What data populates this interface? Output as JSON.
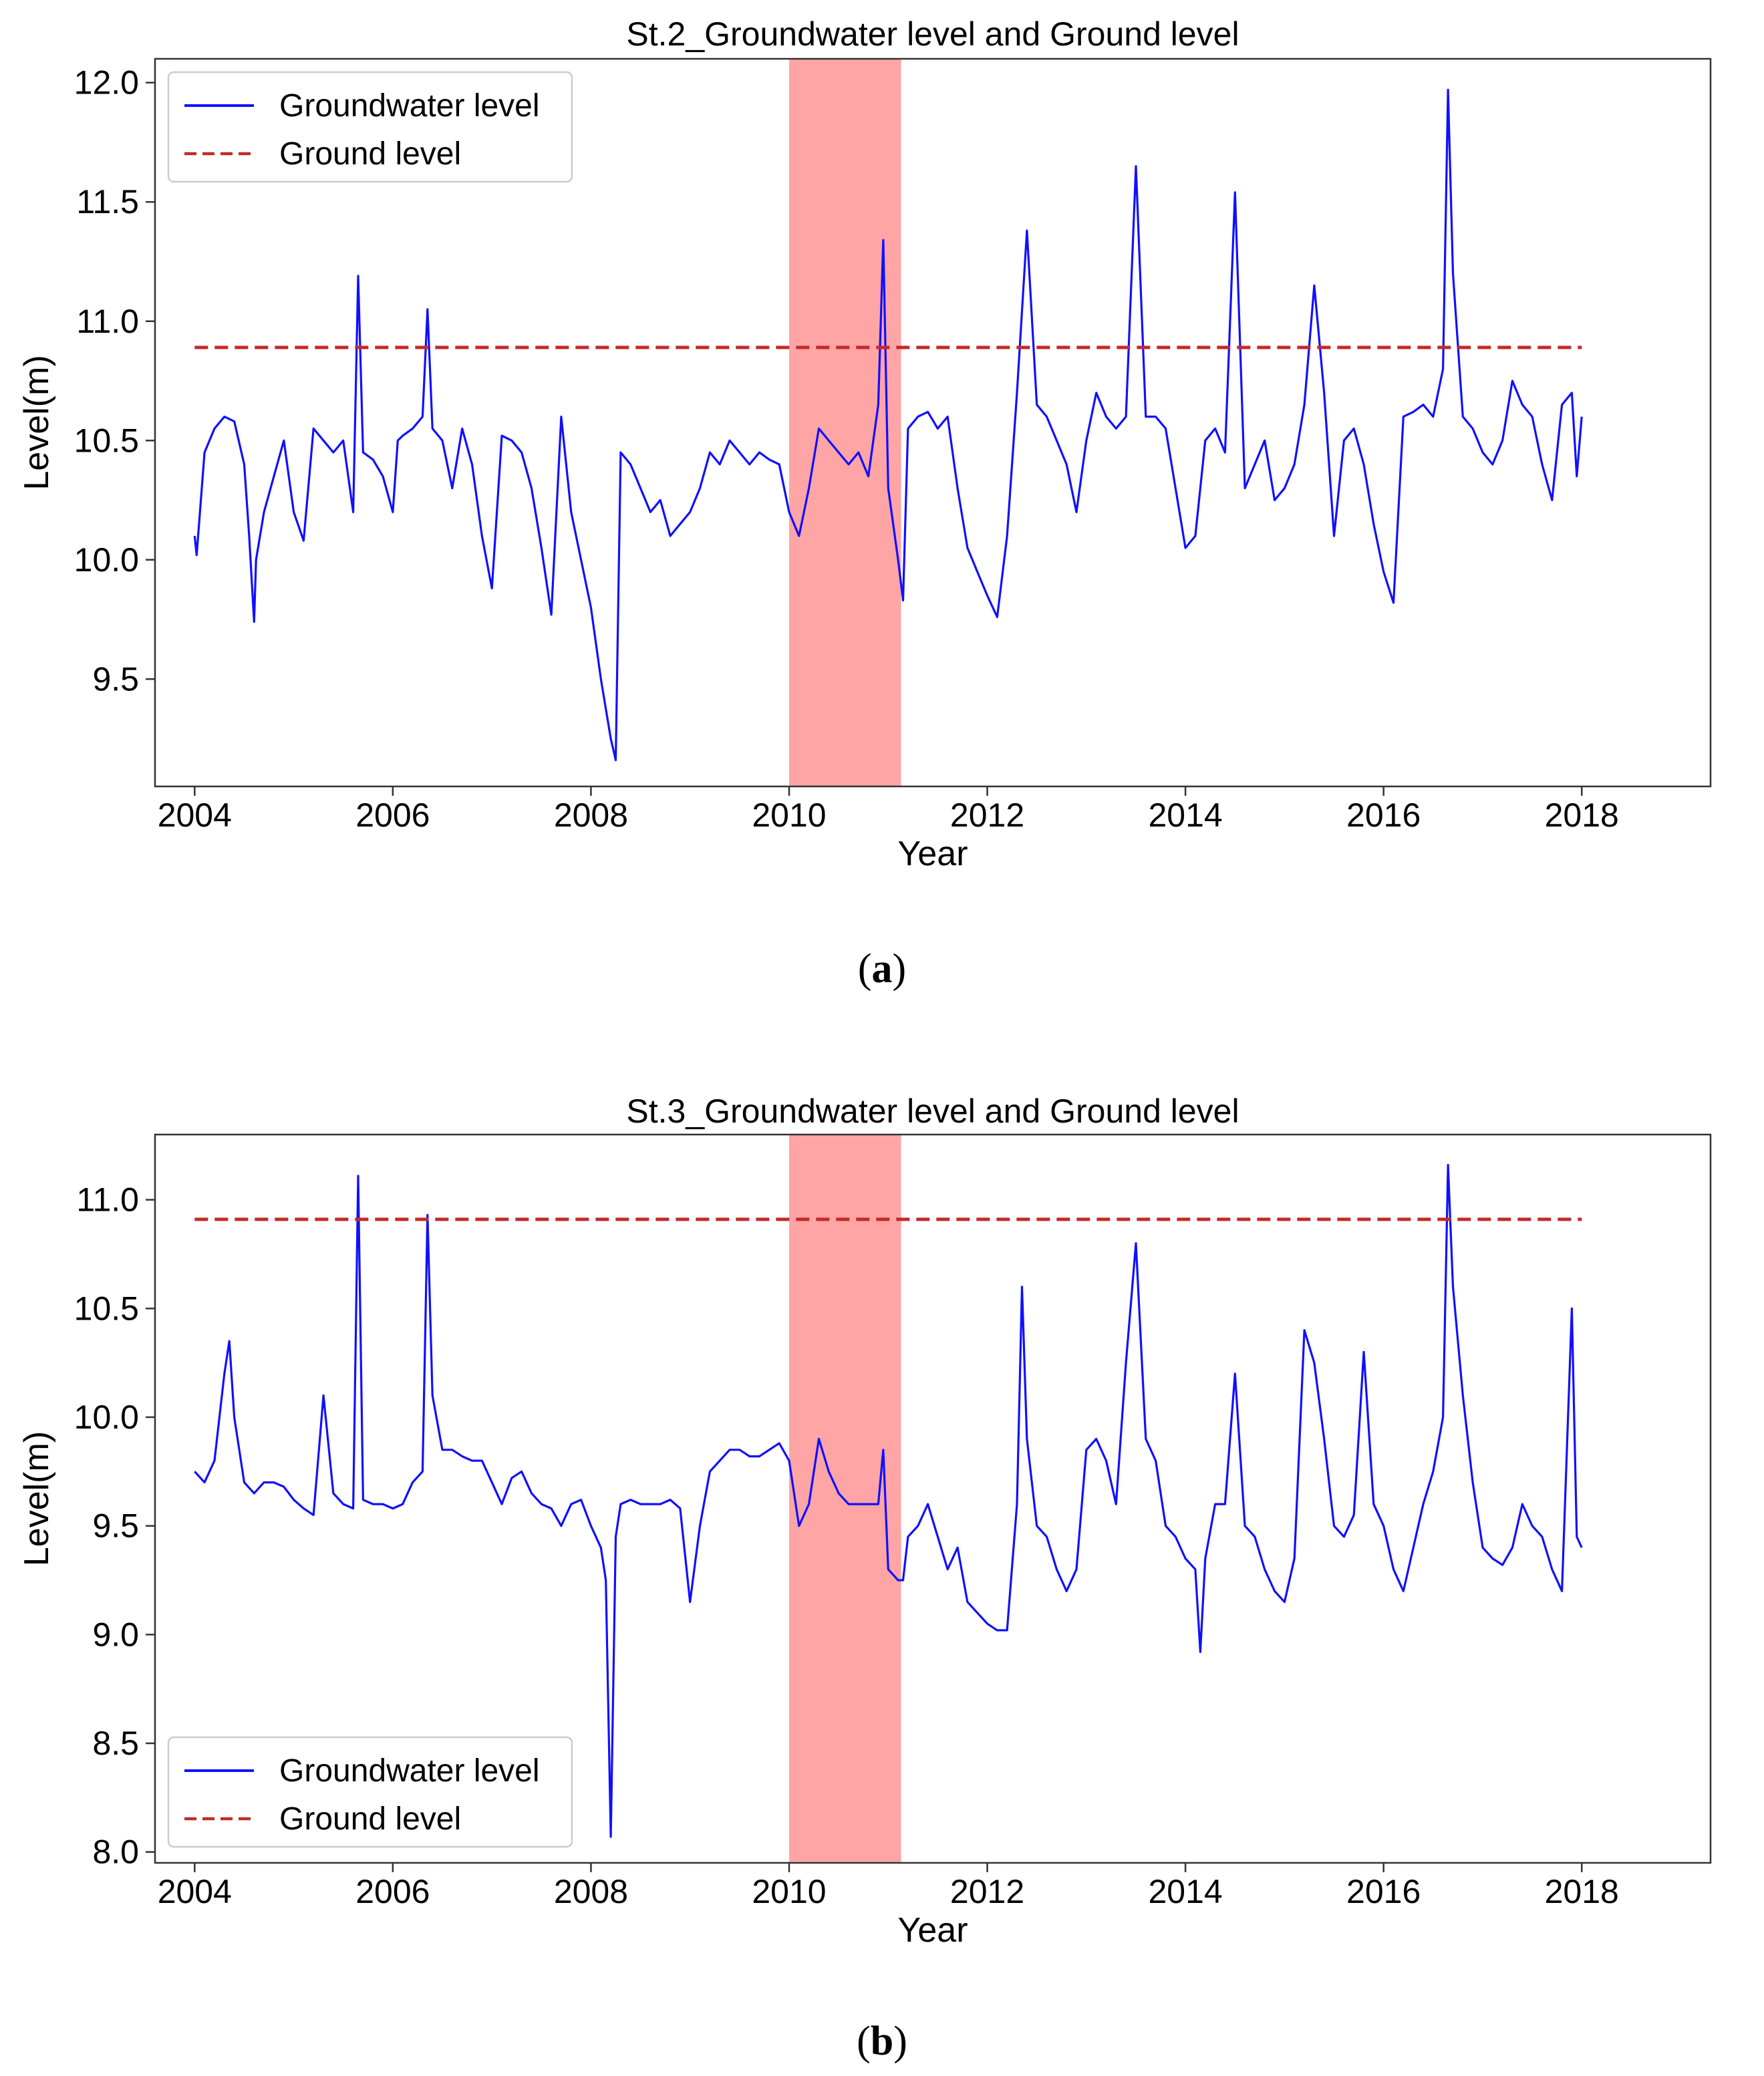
{
  "chart_data": [
    {
      "type": "line",
      "title": "St.2_Groundwater level and Ground level",
      "xlabel": "Year",
      "ylabel": "Level(m)",
      "xlim": [
        2003.6,
        2019.3
      ],
      "ylim": [
        9.05,
        12.1
      ],
      "xticks": [
        2004,
        2006,
        2008,
        2010,
        2012,
        2014,
        2016,
        2018
      ],
      "xtick_labels": [
        "2004",
        "2006",
        "2008",
        "2010",
        "2012",
        "2014",
        "2016",
        "2018"
      ],
      "yticks": [
        9.5,
        10.0,
        10.5,
        11.0,
        11.5,
        12.0
      ],
      "ytick_labels": [
        "9.5",
        "10.0",
        "10.5",
        "11.0",
        "11.5",
        "12.0"
      ],
      "legend_position": "top-left",
      "legend": [
        "Groundwater level",
        "Ground level"
      ],
      "shaded_region": {
        "x_start": 2010.0,
        "x_end": 2011.13,
        "color": "#ff8c8c"
      },
      "series": [
        {
          "name": "Groundwater level",
          "color": "#1010ff",
          "style": "solid",
          "x": [
            2004.0,
            2004.02,
            2004.1,
            2004.2,
            2004.3,
            2004.4,
            2004.5,
            2004.55,
            2004.6,
            2004.62,
            2004.7,
            2004.8,
            2004.9,
            2005.0,
            2005.1,
            2005.2,
            2005.3,
            2005.4,
            2005.5,
            2005.6,
            2005.65,
            2005.7,
            2005.8,
            2005.9,
            2006.0,
            2006.05,
            2006.1,
            2006.2,
            2006.3,
            2006.35,
            2006.4,
            2006.5,
            2006.6,
            2006.7,
            2006.8,
            2006.9,
            2007.0,
            2007.1,
            2007.2,
            2007.3,
            2007.4,
            2007.5,
            2007.6,
            2007.7,
            2007.8,
            2007.9,
            2008.0,
            2008.1,
            2008.2,
            2008.25,
            2008.3,
            2008.4,
            2008.5,
            2008.6,
            2008.7,
            2008.8,
            2008.9,
            2009.0,
            2009.1,
            2009.2,
            2009.3,
            2009.4,
            2009.5,
            2009.6,
            2009.7,
            2009.8,
            2009.9,
            2010.0,
            2010.1,
            2010.2,
            2010.3,
            2010.4,
            2010.5,
            2010.6,
            2010.7,
            2010.8,
            2010.9,
            2010.95,
            2011.0,
            2011.1,
            2011.15,
            2011.2,
            2011.3,
            2011.4,
            2011.5,
            2011.6,
            2011.7,
            2011.8,
            2011.9,
            2012.0,
            2012.1,
            2012.2,
            2012.3,
            2012.4,
            2012.5,
            2012.6,
            2012.7,
            2012.8,
            2012.9,
            2013.0,
            2013.1,
            2013.2,
            2013.3,
            2013.4,
            2013.5,
            2013.6,
            2013.7,
            2013.8,
            2013.9,
            2014.0,
            2014.1,
            2014.2,
            2014.3,
            2014.4,
            2014.5,
            2014.6,
            2014.7,
            2014.8,
            2014.9,
            2015.0,
            2015.1,
            2015.2,
            2015.3,
            2015.4,
            2015.5,
            2015.6,
            2015.7,
            2015.8,
            2015.9,
            2016.0,
            2016.1,
            2016.2,
            2016.3,
            2016.4,
            2016.5,
            2016.6,
            2016.65,
            2016.7,
            2016.8,
            2016.9,
            2017.0,
            2017.1,
            2017.2,
            2017.3,
            2017.4,
            2017.5,
            2017.6,
            2017.7,
            2017.8,
            2017.9,
            2017.95,
            2018.0
          ],
          "values": [
            10.1,
            10.02,
            10.45,
            10.55,
            10.6,
            10.58,
            10.4,
            10.1,
            9.74,
            10.0,
            10.2,
            10.35,
            10.5,
            10.2,
            10.08,
            10.55,
            10.5,
            10.45,
            10.5,
            10.2,
            11.19,
            10.45,
            10.42,
            10.35,
            10.2,
            10.5,
            10.52,
            10.55,
            10.6,
            11.05,
            10.55,
            10.5,
            10.3,
            10.55,
            10.4,
            10.1,
            9.88,
            10.52,
            10.5,
            10.45,
            10.3,
            10.05,
            9.77,
            10.6,
            10.2,
            10.0,
            9.8,
            9.5,
            9.25,
            9.16,
            10.45,
            10.4,
            10.3,
            10.2,
            10.25,
            10.1,
            10.15,
            10.2,
            10.3,
            10.45,
            10.4,
            10.5,
            10.45,
            10.4,
            10.45,
            10.42,
            10.4,
            10.2,
            10.1,
            10.3,
            10.55,
            10.5,
            10.45,
            10.4,
            10.45,
            10.35,
            10.65,
            11.34,
            10.3,
            10.0,
            9.83,
            10.55,
            10.6,
            10.62,
            10.55,
            10.6,
            10.3,
            10.05,
            9.95,
            9.85,
            9.76,
            10.1,
            10.7,
            11.38,
            10.65,
            10.6,
            10.5,
            10.4,
            10.2,
            10.5,
            10.7,
            10.6,
            10.55,
            10.6,
            11.65,
            10.6,
            10.6,
            10.55,
            10.3,
            10.05,
            10.1,
            10.5,
            10.55,
            10.45,
            11.54,
            10.3,
            10.4,
            10.5,
            10.25,
            10.3,
            10.4,
            10.65,
            11.15,
            10.7,
            10.1,
            10.5,
            10.55,
            10.4,
            10.15,
            9.95,
            9.82,
            10.6,
            10.62,
            10.65,
            10.6,
            10.8,
            11.97,
            11.2,
            10.6,
            10.55,
            10.45,
            10.4,
            10.5,
            10.75,
            10.65,
            10.6,
            10.4,
            10.25,
            10.65,
            10.7,
            10.35,
            10.6
          ]
        },
        {
          "name": "Ground level",
          "color": "#c42a2a",
          "style": "dashed",
          "x": [
            2004.0,
            2018.0
          ],
          "values": [
            10.89,
            10.89
          ]
        }
      ]
    },
    {
      "type": "line",
      "title": "St.3_Groundwater level and Ground level",
      "xlabel": "Year",
      "ylabel": "Level(m)",
      "xlim": [
        2003.6,
        2019.3
      ],
      "ylim": [
        7.95,
        11.3
      ],
      "xticks": [
        2004,
        2006,
        2008,
        2010,
        2012,
        2014,
        2016,
        2018
      ],
      "xtick_labels": [
        "2004",
        "2006",
        "2008",
        "2010",
        "2012",
        "2014",
        "2016",
        "2018"
      ],
      "yticks": [
        8.0,
        8.5,
        9.0,
        9.5,
        10.0,
        10.5,
        11.0
      ],
      "ytick_labels": [
        "8.0",
        "8.5",
        "9.0",
        "9.5",
        "10.0",
        "10.5",
        "11.0"
      ],
      "legend_position": "bottom-left",
      "legend": [
        "Groundwater level",
        "Ground level"
      ],
      "shaded_region": {
        "x_start": 2010.0,
        "x_end": 2011.13,
        "color": "#ff8c8c"
      },
      "series": [
        {
          "name": "Groundwater level",
          "color": "#1010ff",
          "style": "solid",
          "x": [
            2004.0,
            2004.1,
            2004.2,
            2004.3,
            2004.35,
            2004.4,
            2004.5,
            2004.6,
            2004.7,
            2004.8,
            2004.9,
            2005.0,
            2005.1,
            2005.2,
            2005.3,
            2005.4,
            2005.5,
            2005.6,
            2005.65,
            2005.7,
            2005.8,
            2005.9,
            2006.0,
            2006.1,
            2006.2,
            2006.3,
            2006.35,
            2006.4,
            2006.5,
            2006.6,
            2006.7,
            2006.8,
            2006.9,
            2007.0,
            2007.1,
            2007.2,
            2007.3,
            2007.4,
            2007.5,
            2007.6,
            2007.7,
            2007.8,
            2007.9,
            2008.0,
            2008.1,
            2008.15,
            2008.2,
            2008.25,
            2008.3,
            2008.4,
            2008.5,
            2008.6,
            2008.7,
            2008.8,
            2008.9,
            2009.0,
            2009.1,
            2009.2,
            2009.3,
            2009.4,
            2009.5,
            2009.6,
            2009.7,
            2009.8,
            2009.9,
            2010.0,
            2010.1,
            2010.2,
            2010.3,
            2010.4,
            2010.5,
            2010.6,
            2010.7,
            2010.8,
            2010.9,
            2010.95,
            2011.0,
            2011.1,
            2011.15,
            2011.2,
            2011.3,
            2011.4,
            2011.5,
            2011.6,
            2011.7,
            2011.8,
            2011.9,
            2012.0,
            2012.1,
            2012.2,
            2012.3,
            2012.35,
            2012.4,
            2012.5,
            2012.6,
            2012.7,
            2012.8,
            2012.9,
            2013.0,
            2013.1,
            2013.2,
            2013.3,
            2013.4,
            2013.5,
            2013.6,
            2013.7,
            2013.8,
            2013.9,
            2014.0,
            2014.1,
            2014.15,
            2014.2,
            2014.3,
            2014.4,
            2014.5,
            2014.6,
            2014.7,
            2014.8,
            2014.9,
            2015.0,
            2015.1,
            2015.2,
            2015.3,
            2015.4,
            2015.5,
            2015.6,
            2015.7,
            2015.8,
            2015.9,
            2016.0,
            2016.1,
            2016.2,
            2016.3,
            2016.4,
            2016.5,
            2016.6,
            2016.65,
            2016.7,
            2016.8,
            2016.9,
            2017.0,
            2017.1,
            2017.2,
            2017.3,
            2017.4,
            2017.5,
            2017.6,
            2017.7,
            2017.8,
            2017.9,
            2017.95,
            2018.0
          ],
          "values": [
            9.75,
            9.7,
            9.8,
            10.2,
            10.35,
            10.0,
            9.7,
            9.65,
            9.7,
            9.7,
            9.68,
            9.62,
            9.58,
            9.55,
            10.1,
            9.65,
            9.6,
            9.58,
            11.11,
            9.62,
            9.6,
            9.6,
            9.58,
            9.6,
            9.7,
            9.75,
            10.93,
            10.1,
            9.85,
            9.85,
            9.82,
            9.8,
            9.8,
            9.7,
            9.6,
            9.72,
            9.75,
            9.65,
            9.6,
            9.58,
            9.5,
            9.6,
            9.62,
            9.5,
            9.4,
            9.25,
            8.07,
            9.45,
            9.6,
            9.62,
            9.6,
            9.6,
            9.6,
            9.62,
            9.58,
            9.15,
            9.5,
            9.75,
            9.8,
            9.85,
            9.85,
            9.82,
            9.82,
            9.85,
            9.88,
            9.8,
            9.5,
            9.6,
            9.9,
            9.75,
            9.65,
            9.6,
            9.6,
            9.6,
            9.6,
            9.85,
            9.3,
            9.25,
            9.25,
            9.45,
            9.5,
            9.6,
            9.45,
            9.3,
            9.4,
            9.15,
            9.1,
            9.05,
            9.02,
            9.02,
            9.6,
            10.6,
            9.9,
            9.5,
            9.45,
            9.3,
            9.2,
            9.3,
            9.85,
            9.9,
            9.8,
            9.6,
            10.25,
            10.8,
            9.9,
            9.8,
            9.5,
            9.45,
            9.35,
            9.3,
            8.92,
            9.35,
            9.6,
            9.6,
            10.2,
            9.5,
            9.45,
            9.3,
            9.2,
            9.15,
            9.35,
            10.4,
            10.25,
            9.9,
            9.5,
            9.45,
            9.55,
            10.3,
            9.6,
            9.5,
            9.3,
            9.2,
            9.4,
            9.6,
            9.75,
            10.0,
            11.16,
            10.6,
            10.1,
            9.7,
            9.4,
            9.35,
            9.32,
            9.4,
            9.6,
            9.5,
            9.45,
            9.3,
            9.2,
            10.5,
            9.45,
            9.4
          ]
        },
        {
          "name": "Ground level",
          "color": "#c42a2a",
          "style": "dashed",
          "x": [
            2004.0,
            2018.0
          ],
          "values": [
            10.91,
            10.91
          ]
        }
      ]
    }
  ],
  "captions": {
    "a": {
      "open": "(",
      "letter": "a",
      "close": ")"
    },
    "b": {
      "open": "(",
      "letter": "b",
      "close": ")"
    }
  }
}
